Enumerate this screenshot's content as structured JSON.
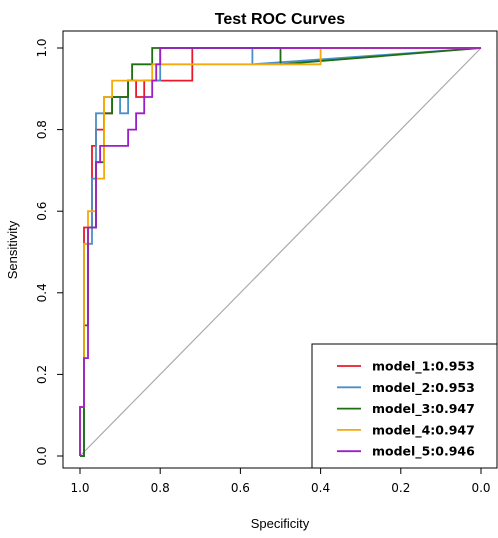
{
  "chart_data": {
    "type": "line",
    "title": "Test ROC Curves",
    "xlabel": "Specificity",
    "ylabel": "Sensitivity",
    "xlim": [
      1.0,
      0.0
    ],
    "ylim": [
      0.0,
      1.0
    ],
    "x_ticks": [
      "1.0",
      "0.8",
      "0.6",
      "0.4",
      "0.2",
      "0.0"
    ],
    "y_ticks": [
      "0.0",
      "0.2",
      "0.4",
      "0.6",
      "0.8",
      "1.0"
    ],
    "legend_position": "bottom-right",
    "reference_line": {
      "x": [
        1.0,
        0.0
      ],
      "y": [
        0.0,
        1.0
      ],
      "color": "#aaaaaa"
    },
    "series": [
      {
        "name": "model_1:0.953",
        "color": "#e8192c",
        "x": [
          1.0,
          0.99,
          0.99,
          0.97,
          0.97,
          0.96,
          0.96,
          0.94,
          0.94,
          0.92,
          0.92,
          0.88,
          0.88,
          0.86,
          0.86,
          0.84,
          0.84,
          0.82,
          0.82,
          0.72,
          0.72,
          0.0
        ],
        "y": [
          0.0,
          0.0,
          0.56,
          0.56,
          0.76,
          0.76,
          0.8,
          0.8,
          0.84,
          0.84,
          0.88,
          0.88,
          0.92,
          0.92,
          0.88,
          0.88,
          0.92,
          0.92,
          0.92,
          0.92,
          1.0,
          1.0
        ]
      },
      {
        "name": "model_2:0.953",
        "color": "#4a8fc7",
        "x": [
          1.0,
          0.99,
          0.99,
          0.97,
          0.97,
          0.96,
          0.96,
          0.94,
          0.94,
          0.9,
          0.9,
          0.88,
          0.88,
          0.8,
          0.8,
          0.57,
          0.57,
          0.0
        ],
        "y": [
          0.0,
          0.0,
          0.52,
          0.52,
          0.68,
          0.68,
          0.84,
          0.84,
          0.88,
          0.88,
          0.84,
          0.84,
          0.92,
          0.92,
          1.0,
          1.0,
          0.96,
          1.0
        ]
      },
      {
        "name": "model_3:0.947",
        "color": "#1e6e12",
        "x": [
          1.0,
          0.99,
          0.99,
          0.98,
          0.98,
          0.96,
          0.96,
          0.94,
          0.94,
          0.92,
          0.92,
          0.88,
          0.88,
          0.87,
          0.87,
          0.82,
          0.82,
          0.5,
          0.5,
          0.0
        ],
        "y": [
          0.0,
          0.0,
          0.32,
          0.32,
          0.56,
          0.56,
          0.72,
          0.72,
          0.84,
          0.84,
          0.88,
          0.88,
          0.92,
          0.92,
          0.96,
          0.96,
          1.0,
          1.0,
          0.96,
          1.0
        ]
      },
      {
        "name": "model_4:0.947",
        "color": "#f5a90a",
        "x": [
          1.0,
          1.0,
          0.99,
          0.99,
          0.98,
          0.98,
          0.96,
          0.96,
          0.94,
          0.94,
          0.92,
          0.92,
          0.82,
          0.82,
          0.4,
          0.4,
          0.0
        ],
        "y": [
          0.0,
          0.12,
          0.12,
          0.52,
          0.52,
          0.6,
          0.6,
          0.68,
          0.68,
          0.88,
          0.88,
          0.92,
          0.92,
          0.96,
          0.96,
          1.0,
          1.0
        ]
      },
      {
        "name": "model_5:0.946",
        "color": "#9b1ec8",
        "x": [
          1.0,
          1.0,
          0.99,
          0.99,
          0.98,
          0.98,
          0.96,
          0.96,
          0.95,
          0.95,
          0.92,
          0.92,
          0.88,
          0.88,
          0.86,
          0.86,
          0.84,
          0.84,
          0.82,
          0.82,
          0.81,
          0.81,
          0.8,
          0.8,
          0.0
        ],
        "y": [
          0.0,
          0.12,
          0.12,
          0.24,
          0.24,
          0.56,
          0.56,
          0.72,
          0.72,
          0.76,
          0.76,
          0.76,
          0.76,
          0.8,
          0.8,
          0.84,
          0.84,
          0.88,
          0.88,
          0.92,
          0.92,
          0.96,
          0.96,
          1.0,
          1.0
        ]
      }
    ]
  }
}
